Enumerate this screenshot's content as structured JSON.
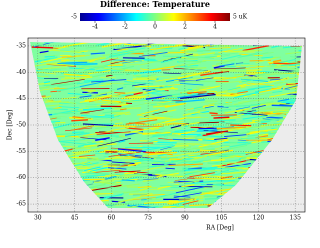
{
  "chart_data": {
    "type": "map",
    "title": "Difference: Temperature",
    "colorbar": {
      "lim": [
        -5,
        5
      ],
      "ticks": [
        -5,
        -4,
        -2,
        0,
        2,
        4,
        {
          "value": 5,
          "label": "5 uK"
        }
      ]
    },
    "xlabel": "RA [Deg]",
    "ylabel": "Dec [Deg]",
    "xlim": [
      26,
      139
    ],
    "xticks": [
      30,
      45,
      60,
      75,
      90,
      105,
      120,
      135
    ],
    "ylim": [
      -66.5,
      -33.5
    ],
    "yticks": [
      -35,
      -40,
      -45,
      -50,
      -55,
      -60,
      -65
    ],
    "grid": true
  }
}
